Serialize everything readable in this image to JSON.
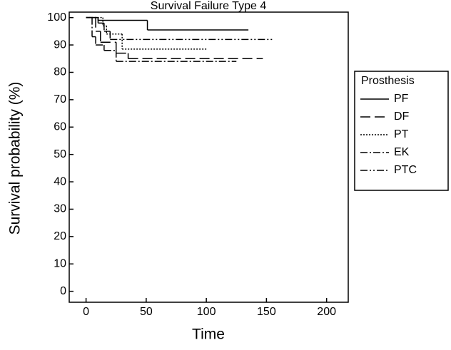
{
  "chart_data": {
    "type": "step",
    "title": "Survival Failure Type 4",
    "x_label": "Time",
    "y_label": "Survival probability (%)",
    "legend_title": "Prosthesis",
    "legend": "right",
    "xlim": [
      -14,
      218
    ],
    "xticks": [
      0,
      50,
      100,
      150,
      200
    ],
    "ylim": [
      -4,
      102
    ],
    "yticks": [
      0,
      10,
      20,
      30,
      40,
      50,
      60,
      70,
      80,
      90,
      100
    ],
    "series": [
      {
        "name": "PF",
        "color": "#000000",
        "dash": "none",
        "x": [
          0,
          10,
          51,
          135
        ],
        "values": [
          100,
          99,
          95.5,
          95.5
        ]
      },
      {
        "name": "DF",
        "color": "#000000",
        "dash": "14,6",
        "x": [
          0,
          8,
          12,
          25,
          35,
          147
        ],
        "values": [
          100,
          95,
          91,
          87,
          85,
          85
        ]
      },
      {
        "name": "PT",
        "color": "#000000",
        "dash": "2,2",
        "x": [
          0,
          14,
          17,
          30,
          100
        ],
        "values": [
          100,
          97,
          94,
          88.5,
          88.5
        ]
      },
      {
        "name": "EK",
        "color": "#000000",
        "dash": "10,3,2,3",
        "x": [
          0,
          5,
          8,
          15,
          25,
          125
        ],
        "values": [
          100,
          93,
          90,
          88,
          84,
          84
        ]
      },
      {
        "name": "PTC",
        "color": "#000000",
        "dash": "10,3,2,3,2,3",
        "x": [
          0,
          10,
          15,
          20,
          156
        ],
        "values": [
          100,
          98,
          95,
          92,
          92
        ]
      }
    ]
  }
}
